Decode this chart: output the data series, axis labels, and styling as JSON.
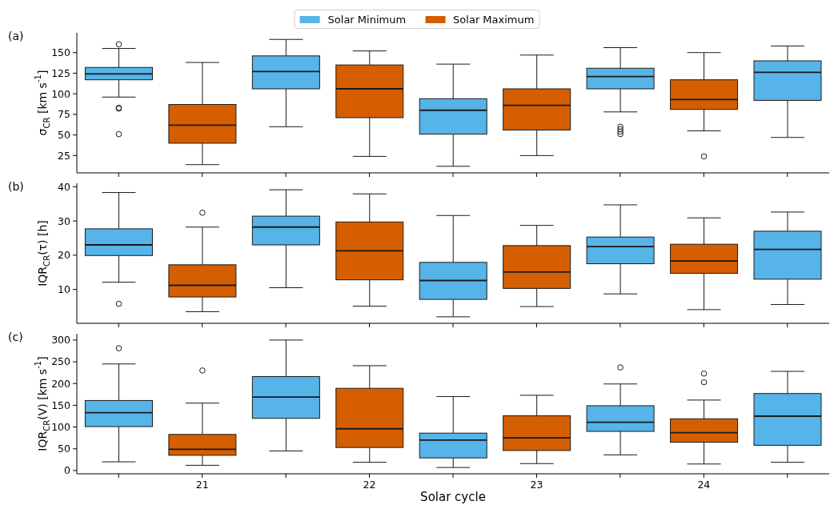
{
  "chart_data": [
    {
      "type": "box",
      "title": "(a)",
      "ylabel": "σ$_{CR}$ [km s$^{-1}$]",
      "categories": [
        null,
        "21",
        null,
        "22",
        null,
        "23",
        null,
        "24",
        null
      ],
      "ylim": [
        4,
        174
      ],
      "yticks": [
        25,
        50,
        75,
        100,
        125,
        150
      ],
      "tick_labels": "y",
      "legend": "top",
      "series": [
        {
          "name": "Solar Minimum",
          "color": "#56b4e9",
          "boxes": [
            {
              "low": 96,
              "q1": 117,
              "median": 124,
              "q3": 132,
              "high": 155,
              "outliers": [
                160,
                83,
                82,
                51
              ]
            },
            null,
            {
              "low": 60,
              "q1": 106,
              "median": 127,
              "q3": 146,
              "high": 166
            },
            null,
            {
              "low": 12,
              "q1": 51,
              "median": 80,
              "q3": 94,
              "high": 136
            },
            null,
            {
              "low": 78,
              "q1": 106,
              "median": 121,
              "q3": 131,
              "high": 156,
              "outliers": [
                60,
                57,
                54,
                51
              ]
            },
            null,
            {
              "low": 47,
              "q1": 92,
              "median": 126,
              "q3": 140,
              "high": 158
            }
          ]
        },
        {
          "name": "Solar Maximum",
          "color": "#d55e00",
          "boxes": [
            null,
            {
              "low": 14,
              "q1": 40,
              "median": 62,
              "q3": 87,
              "high": 138
            },
            null,
            {
              "low": 24,
              "q1": 71,
              "median": 106,
              "q3": 135,
              "high": 152
            },
            null,
            {
              "low": 25,
              "q1": 56,
              "median": 86,
              "q3": 106,
              "high": 147
            },
            null,
            {
              "low": 55,
              "q1": 81,
              "median": 93,
              "q3": 117,
              "high": 150,
              "outliers": [
                24
              ]
            },
            null
          ]
        }
      ]
    },
    {
      "type": "box",
      "title": "(b)",
      "ylabel": "IQR$_{CR}$(τ) [h]",
      "categories": [
        null,
        "21",
        null,
        "22",
        null,
        "23",
        null,
        "24",
        null
      ],
      "ylim": [
        0.1,
        41
      ],
      "yticks": [
        10,
        20,
        30,
        40
      ],
      "tick_labels": "y",
      "series": [
        {
          "color": "#56b4e9",
          "boxes": [
            {
              "low": 12.1,
              "q1": 19.9,
              "median": 23.0,
              "q3": 27.7,
              "high": 38.3,
              "outliers": [
                5.8
              ]
            },
            null,
            {
              "low": 10.5,
              "q1": 23.0,
              "median": 28.2,
              "q3": 31.4,
              "high": 39.1
            },
            null,
            {
              "low": 2.0,
              "q1": 7.1,
              "median": 12.6,
              "q3": 17.9,
              "high": 31.6
            },
            null,
            {
              "low": 8.7,
              "q1": 17.5,
              "median": 22.5,
              "q3": 25.3,
              "high": 34.7
            },
            null,
            {
              "low": 5.6,
              "q1": 13.0,
              "median": 21.7,
              "q3": 27.0,
              "high": 32.6
            }
          ]
        },
        {
          "color": "#d55e00",
          "boxes": [
            null,
            {
              "low": 3.5,
              "q1": 7.8,
              "median": 11.2,
              "q3": 17.2,
              "high": 28.2,
              "outliers": [
                32.4
              ]
            },
            null,
            {
              "low": 5.1,
              "q1": 12.8,
              "median": 21.3,
              "q3": 29.7,
              "high": 37.9
            },
            null,
            {
              "low": 5.0,
              "q1": 10.3,
              "median": 15.1,
              "q3": 22.8,
              "high": 28.7
            },
            null,
            {
              "low": 4.1,
              "q1": 14.7,
              "median": 18.3,
              "q3": 23.2,
              "high": 30.9
            },
            null
          ]
        }
      ]
    },
    {
      "type": "box",
      "title": "(c)",
      "ylabel": "IQR$_{CR}$(V) [km s$^{-1}$]",
      "xlabel": "Solar cycle",
      "categories": [
        null,
        "21",
        null,
        "22",
        null,
        "23",
        null,
        "24",
        null
      ],
      "ylim": [
        -7.5,
        314.5
      ],
      "yticks": [
        0,
        50,
        100,
        150,
        200,
        250,
        300
      ],
      "series": [
        {
          "color": "#56b4e9",
          "boxes": [
            {
              "low": 20,
              "q1": 101,
              "median": 133,
              "q3": 161,
              "high": 245,
              "outliers": [
                281
              ]
            },
            null,
            {
              "low": 45,
              "q1": 120,
              "median": 169,
              "q3": 216,
              "high": 300
            },
            null,
            {
              "low": 7,
              "q1": 29,
              "median": 70,
              "q3": 86,
              "high": 170
            },
            null,
            {
              "low": 36,
              "q1": 90,
              "median": 111,
              "q3": 149,
              "high": 199,
              "outliers": [
                237
              ]
            },
            null,
            {
              "low": 19,
              "q1": 58,
              "median": 125,
              "q3": 177,
              "high": 228
            }
          ]
        },
        {
          "color": "#d55e00",
          "boxes": [
            null,
            {
              "low": 12,
              "q1": 35,
              "median": 49,
              "q3": 83,
              "high": 155,
              "outliers": [
                230
              ]
            },
            null,
            {
              "low": 19,
              "q1": 53,
              "median": 96,
              "q3": 189,
              "high": 241
            },
            null,
            {
              "low": 16,
              "q1": 46,
              "median": 75,
              "q3": 126,
              "high": 173
            },
            null,
            {
              "low": 15,
              "q1": 65,
              "median": 87,
              "q3": 119,
              "high": 162,
              "outliers": [
                223,
                203
              ]
            },
            null
          ]
        }
      ]
    }
  ]
}
